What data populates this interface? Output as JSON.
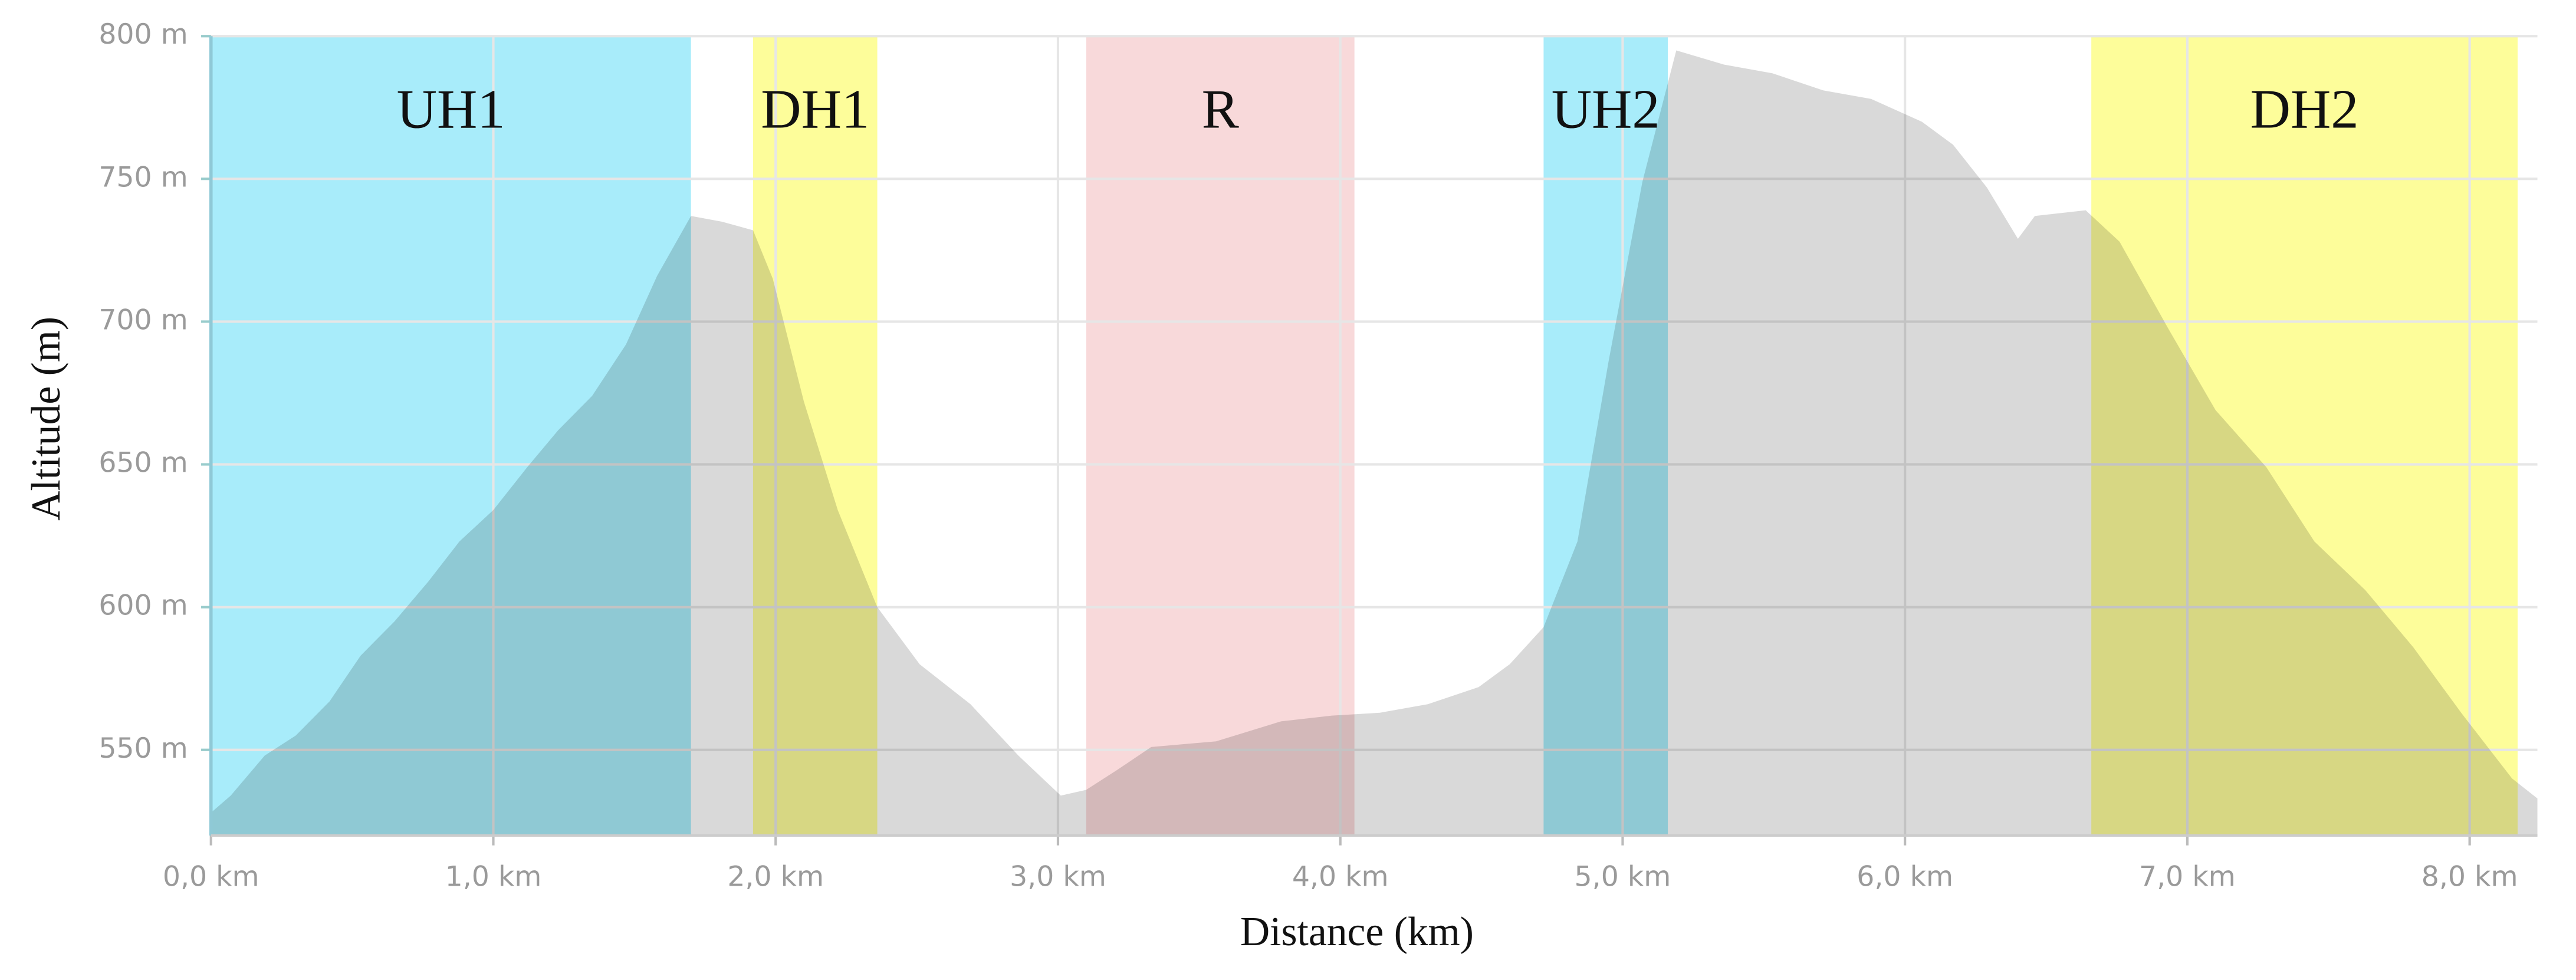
{
  "chart_data": {
    "type": "area",
    "x_label": "Distance (km)",
    "y_label": "Altitude (m)",
    "color": "#d9d9d9",
    "xlim": [
      0,
      8.24
    ],
    "ylim": [
      520,
      800
    ],
    "xticks": [
      {
        "value": 0,
        "label": "0,0 km"
      },
      {
        "value": 1,
        "label": "1,0 km"
      },
      {
        "value": 2,
        "label": "2,0 km"
      },
      {
        "value": 3,
        "label": "3,0 km"
      },
      {
        "value": 4,
        "label": "4,0 km"
      },
      {
        "value": 5,
        "label": "5,0 km"
      },
      {
        "value": 6,
        "label": "6,0 km"
      },
      {
        "value": 7,
        "label": "7,0 km"
      },
      {
        "value": 8,
        "label": "8,0 km"
      }
    ],
    "yticks": [
      {
        "value": 550,
        "label": "550 m"
      },
      {
        "value": 600,
        "label": "600 m"
      },
      {
        "value": 650,
        "label": "650 m"
      },
      {
        "value": 700,
        "label": "700 m"
      },
      {
        "value": 750,
        "label": "750 m"
      },
      {
        "value": 800,
        "label": "800 m"
      }
    ],
    "grid": true,
    "regions": [
      {
        "label": "UH1",
        "start": 0,
        "end": 1.7,
        "color": "#a8ecfa"
      },
      {
        "label": "DH1",
        "start": 1.92,
        "end": 2.36,
        "color": "#fdfd9a"
      },
      {
        "label": "R",
        "start": 3.1,
        "end": 4.05,
        "color": "#f8d9da"
      },
      {
        "label": "UH2",
        "start": 4.72,
        "end": 5.16,
        "color": "#a8ecfa"
      },
      {
        "label": "DH2",
        "start": 6.66,
        "end": 8.17,
        "color": "#fdfd9a"
      }
    ],
    "x": [
      0,
      0.07,
      0.19,
      0.3,
      0.42,
      0.53,
      0.65,
      0.77,
      0.88,
      1.0,
      1.12,
      1.23,
      1.35,
      1.47,
      1.58,
      1.7,
      1.81,
      1.92,
      1.99,
      2.1,
      2.22,
      2.36,
      2.51,
      2.69,
      2.86,
      3.01,
      3.1,
      3.21,
      3.33,
      3.56,
      3.79,
      3.97,
      4.14,
      4.31,
      4.49,
      4.6,
      4.72,
      4.84,
      4.95,
      5.07,
      5.19,
      5.36,
      5.53,
      5.71,
      5.88,
      6.06,
      6.17,
      6.29,
      6.4,
      6.46,
      6.64,
      6.76,
      6.93,
      7.1,
      7.28,
      7.45,
      7.63,
      7.8,
      7.97,
      8.15,
      8.24
    ],
    "values": [
      528,
      534,
      548,
      555,
      567,
      583,
      595,
      609,
      623,
      634,
      649,
      662,
      674,
      692,
      716,
      737,
      735,
      732,
      715,
      672,
      634,
      600,
      580,
      566,
      548,
      534,
      536,
      543,
      551,
      553,
      560,
      562,
      563,
      566,
      572,
      580,
      593,
      623,
      686,
      749,
      795,
      790,
      787,
      781,
      778,
      770,
      762,
      747,
      729,
      737,
      739,
      728,
      698,
      669,
      649,
      623,
      606,
      586,
      563,
      540,
      533
    ]
  }
}
